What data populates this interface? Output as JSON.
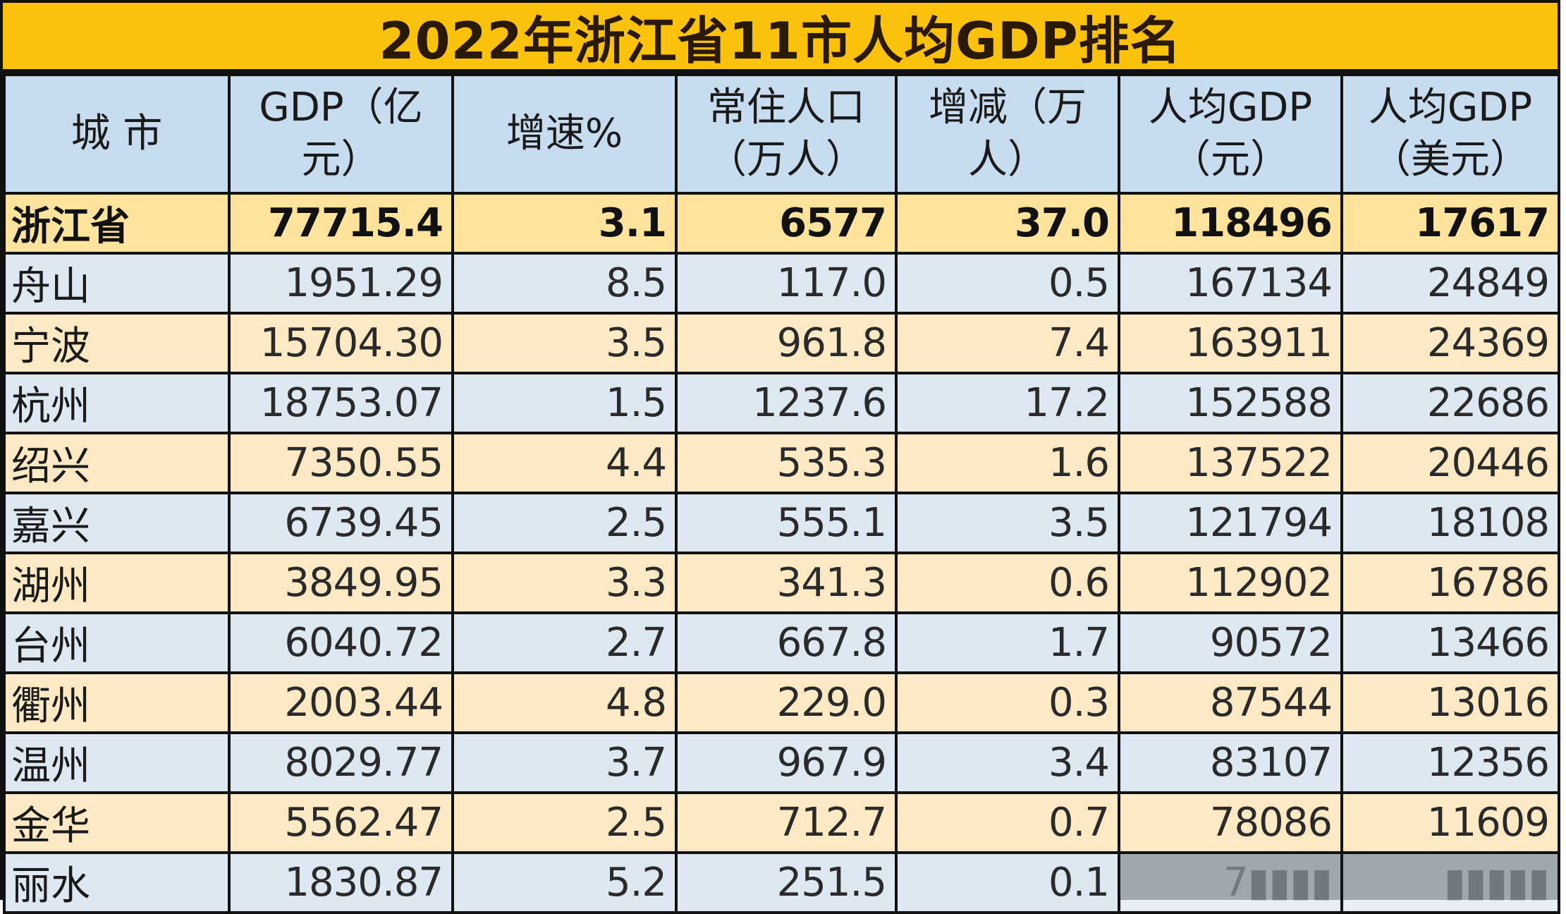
{
  "title": "2022年浙江省11市人均GDP排名",
  "colors": {
    "title_bg": "#fbc20d",
    "header_bg": "#c8dcf0",
    "row_blue": "#dde8f3",
    "row_yellow": "#fdeac4",
    "total_row": "#fde39c",
    "border": "#111111"
  },
  "columns": [
    "城 市",
    "GDP（亿元）",
    "增速%",
    "常住人口（万人）",
    "增减（万人）",
    "人均GDP（元）",
    "人均GDP（美元）"
  ],
  "total": {
    "city": "浙江省",
    "gdp": "77715.4",
    "growth": "3.1",
    "population": "6577",
    "change": "37.0",
    "gdp_per_capita_cny": "118496",
    "gdp_per_capita_usd": "17617"
  },
  "rows": [
    {
      "city": "舟山",
      "gdp": "1951.29",
      "growth": "8.5",
      "population": "117.0",
      "change": "0.5",
      "gdp_per_capita_cny": "167134",
      "gdp_per_capita_usd": "24849"
    },
    {
      "city": "宁波",
      "gdp": "15704.30",
      "growth": "3.5",
      "population": "961.8",
      "change": "7.4",
      "gdp_per_capita_cny": "163911",
      "gdp_per_capita_usd": "24369"
    },
    {
      "city": "杭州",
      "gdp": "18753.07",
      "growth": "1.5",
      "population": "1237.6",
      "change": "17.2",
      "gdp_per_capita_cny": "152588",
      "gdp_per_capita_usd": "22686"
    },
    {
      "city": "绍兴",
      "gdp": "7350.55",
      "growth": "4.4",
      "population": "535.3",
      "change": "1.6",
      "gdp_per_capita_cny": "137522",
      "gdp_per_capita_usd": "20446"
    },
    {
      "city": "嘉兴",
      "gdp": "6739.45",
      "growth": "2.5",
      "population": "555.1",
      "change": "3.5",
      "gdp_per_capita_cny": "121794",
      "gdp_per_capita_usd": "18108"
    },
    {
      "city": "湖州",
      "gdp": "3849.95",
      "growth": "3.3",
      "population": "341.3",
      "change": "0.6",
      "gdp_per_capita_cny": "112902",
      "gdp_per_capita_usd": "16786"
    },
    {
      "city": "台州",
      "gdp": "6040.72",
      "growth": "2.7",
      "population": "667.8",
      "change": "1.7",
      "gdp_per_capita_cny": "90572",
      "gdp_per_capita_usd": "13466"
    },
    {
      "city": "衢州",
      "gdp": "2003.44",
      "growth": "4.8",
      "population": "229.0",
      "change": "0.3",
      "gdp_per_capita_cny": "87544",
      "gdp_per_capita_usd": "13016"
    },
    {
      "city": "温州",
      "gdp": "8029.77",
      "growth": "3.7",
      "population": "967.9",
      "change": "3.4",
      "gdp_per_capita_cny": "83107",
      "gdp_per_capita_usd": "12356"
    },
    {
      "city": "金华",
      "gdp": "5562.47",
      "growth": "2.5",
      "population": "712.7",
      "change": "0.7",
      "gdp_per_capita_cny": "78086",
      "gdp_per_capita_usd": "11609"
    },
    {
      "city": "丽水",
      "gdp": "1830.87",
      "growth": "5.2",
      "population": "251.5",
      "change": "0.1",
      "gdp_per_capita_cny": "7▮▮▮▮",
      "gdp_per_capita_usd": "▮▮▮▮▮"
    }
  ]
}
